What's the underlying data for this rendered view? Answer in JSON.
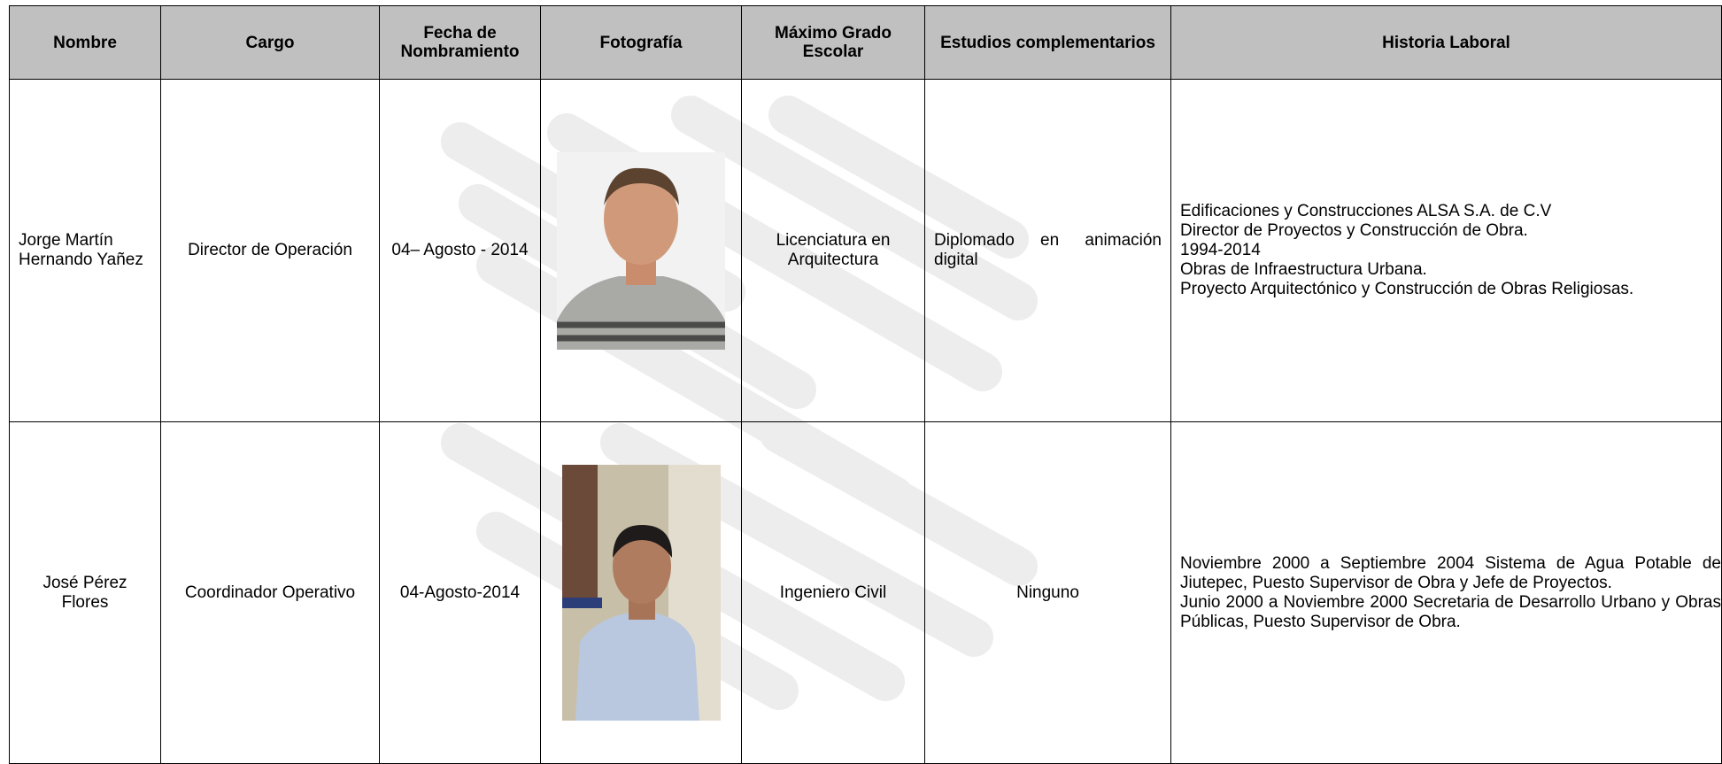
{
  "table": {
    "headers": [
      "Nombre",
      "Cargo",
      "Fecha de Nombramiento",
      "Fotografía",
      "Máximo Grado Escolar",
      "Estudios complementarios",
      "Historia Laboral"
    ],
    "rows": [
      {
        "nombre": "Jorge Martín Hernando Yañez",
        "cargo": "Director de Operación",
        "fecha": "04– Agosto - 2014",
        "grado": "Licenciatura en Arquitectura",
        "estudios": "Diplomado en animación digital",
        "historia": [
          "Edificaciones y Construcciones ALSA S.A. de C.V",
          "Director de Proyectos y Construcción de Obra.",
          "1994-2014",
          "Obras de Infraestructura Urbana.",
          "Proyecto Arquitectónico y Construcción de Obras Religiosas."
        ]
      },
      {
        "nombre": "José Pérez Flores",
        "cargo": "Coordinador Operativo",
        "fecha": "04-Agosto-2014",
        "grado": "Ingeniero Civil",
        "estudios": "Ninguno",
        "historia": [
          "Noviembre 2000 a Septiembre 2004 Sistema de Agua Potable de Jiutepec, Puesto Supervisor de Obra y Jefe de Proyectos.",
          "Junio 2000 a Noviembre 2000 Secretaria de Desarrollo Urbano y Obras Públicas, Puesto Supervisor de Obra."
        ]
      }
    ]
  }
}
